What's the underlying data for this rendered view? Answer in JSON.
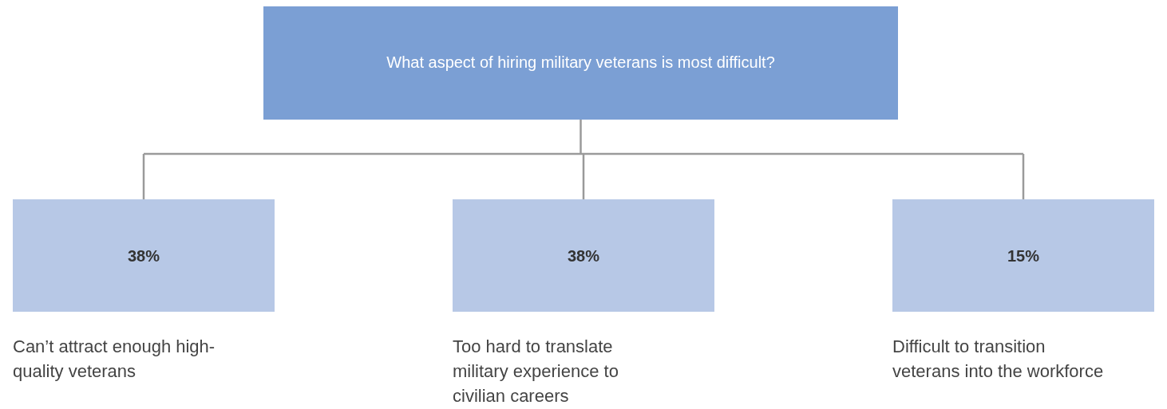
{
  "chart_data": {
    "type": "other",
    "title": "What aspect of hiring military veterans is most difficult?",
    "categories": [
      "Can’t attract enough high-quality veterans",
      "Too hard to translate military experience to civilian careers",
      "Difficult to transition veterans into the workforce"
    ],
    "values": [
      38,
      38,
      15
    ],
    "value_labels": [
      "38%",
      "38%",
      "15%"
    ],
    "colors": [
      "#b7c8e6",
      "#b7c8e6",
      "#b7c8e6"
    ]
  }
}
